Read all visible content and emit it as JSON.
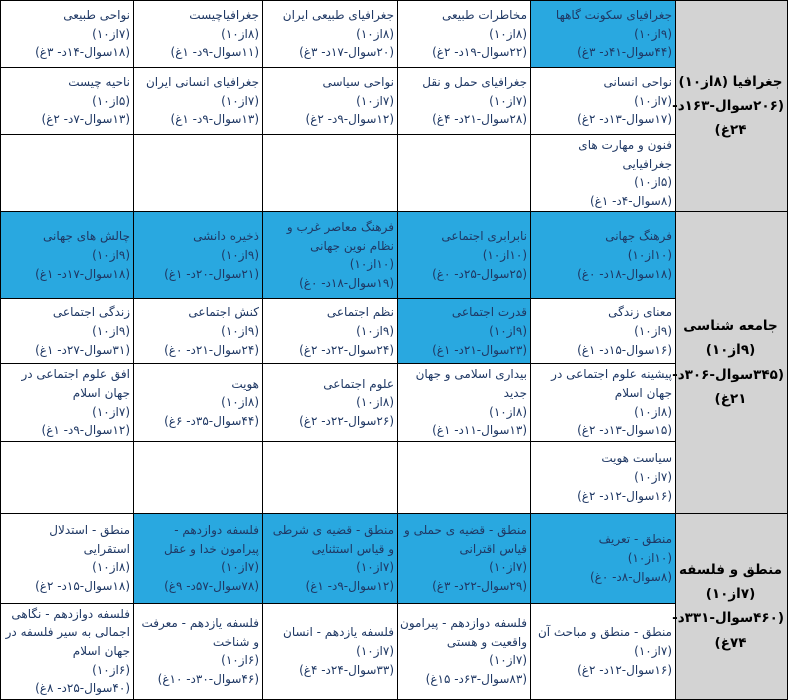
{
  "colors": {
    "highlight_blue": "#29A8E0",
    "group_header_gray": "#D3D3D3",
    "cell_text_navy": "#1F3864",
    "border_black": "#000000",
    "background": "#FFFFFF"
  },
  "table": {
    "direction": "rtl",
    "sections": [
      {
        "header": {
          "title": "جغرافیا (۸از۱۰)",
          "stats": "(۲۰۶سوال-۱۶۳د- ۲۴غ)"
        },
        "rows": [
          {
            "height": 67,
            "cells_rtl": [
              {
                "title": "جغرافیای سکونت گاهها",
                "score": "(۹از۱۰)",
                "stats": "(۴۴سوال-۴۱د- ۳غ)",
                "highlight": true
              },
              {
                "title": "مخاطرات طبیعی",
                "score": "(۸از۱۰)",
                "stats": "(۲۲سوال-۱۹د- ۲غ)",
                "highlight": false
              },
              {
                "title": "جغرافیای طبیعی ایران",
                "score": "(۸از۱۰)",
                "stats": "(۲۰سوال-۱۷د- ۳غ)",
                "highlight": false
              },
              {
                "title": "جغرافیاچیست",
                "score": "(۸از۱۰)",
                "stats": "(۱۱سوال-۹د- ۱غ)",
                "highlight": false
              },
              {
                "title": "نواحی طبیعی",
                "score": "(۷از۱۰)",
                "stats": "(۱۸سوال-۱۴د- ۳غ)",
                "highlight": false
              }
            ]
          },
          {
            "height": 67,
            "cells_rtl": [
              {
                "title": "نواحی انسانی",
                "score": "(۷از۱۰)",
                "stats": "(۱۷سوال-۱۳د- ۲غ)",
                "highlight": false
              },
              {
                "title": "جغرافیای حمل و نقل",
                "score": "(۷از۱۰)",
                "stats": "(۲۸سوال-۲۱د- ۴غ)",
                "highlight": false
              },
              {
                "title": "نواحی سیاسی",
                "score": "(۷از۱۰)",
                "stats": "(۱۲سوال-۹د- ۲غ)",
                "highlight": false
              },
              {
                "title": "جغرافیای انسانی ایران",
                "score": "(۷از۱۰)",
                "stats": "(۱۳سوال-۹د- ۱غ)",
                "highlight": false
              },
              {
                "title": "ناحیه چیست",
                "score": "(۵از۱۰)",
                "stats": "(۱۳سوال-۷د- ۲غ)",
                "highlight": false
              }
            ]
          },
          {
            "height": 64,
            "cells_rtl": [
              {
                "title": "فنون و مهارت های جغرافیایی",
                "score": "(۵از۱۰)",
                "stats": "(۸سوال-۴د- ۱غ)",
                "highlight": false
              },
              null,
              null,
              null,
              null
            ]
          }
        ]
      },
      {
        "header": {
          "title": "جامعه شناسی (۹از۱۰)",
          "stats": "(۳۴۵سوال-۳۰۶د- ۲۱غ)"
        },
        "rows": [
          {
            "height": 87,
            "cells_rtl": [
              {
                "title": "فرهنگ جهانی",
                "score": "(۱۰از۱۰)",
                "stats": "(۱۸سوال-۱۸د- ۰غ)",
                "highlight": true
              },
              {
                "title": "نابرابری اجتماعی",
                "score": "(۱۰از۱۰)",
                "stats": "(۲۵سوال-۲۵د- ۰غ)",
                "highlight": true
              },
              {
                "title": "فرهنگ معاصر غرب و نظام نوین جهانی",
                "score": "(۱۰از۱۰)",
                "stats": "(۱۹سوال-۱۸د- ۰غ)",
                "highlight": true
              },
              {
                "title": "ذخیره دانشی",
                "score": "(۹از۱۰)",
                "stats": "(۲۱سوال-۲۰د- ۱غ)",
                "highlight": true
              },
              {
                "title": "چالش های جهانی",
                "score": "(۹از۱۰)",
                "stats": "(۱۸سوال-۱۷د- ۱غ)",
                "highlight": true
              }
            ]
          },
          {
            "height": 65,
            "cells_rtl": [
              {
                "title": "معنای زندگی",
                "score": "(۹از۱۰)",
                "stats": "(۱۶سوال-۱۵د- ۱غ)",
                "highlight": false
              },
              {
                "title": "قدرت اجتماعی",
                "score": "(۹از۱۰)",
                "stats": "(۲۳سوال-۲۱د- ۱غ)",
                "highlight": true
              },
              {
                "title": "نظم اجتماعی",
                "score": "(۹از۱۰)",
                "stats": "(۲۴سوال-۲۲د- ۲غ)",
                "highlight": false
              },
              {
                "title": "کنش اجتماعی",
                "score": "(۹از۱۰)",
                "stats": "(۲۴سوال-۲۱د- ۰غ)",
                "highlight": false
              },
              {
                "title": "زندگی اجتماعی",
                "score": "(۹از۱۰)",
                "stats": "(۳۱سوال-۲۷د- ۱غ)",
                "highlight": false
              }
            ]
          },
          {
            "height": 73,
            "cells_rtl": [
              {
                "title": "پیشینه علوم اجتماعی در جهان اسلام",
                "score": "(۸از۱۰)",
                "stats": "(۱۵سوال-۱۳د- ۲غ)",
                "highlight": false
              },
              {
                "title": "بیداری اسلامی و جهان جدید",
                "score": "(۸از۱۰)",
                "stats": "(۱۳سوال-۱۱د- ۱غ)",
                "highlight": false
              },
              {
                "title": "علوم اجتماعی",
                "score": "(۸از۱۰)",
                "stats": "(۲۶سوال-۲۲د- ۲غ)",
                "highlight": false
              },
              {
                "title": "هویت",
                "score": "(۸از۱۰)",
                "stats": "(۴۴سوال-۳۵د- ۶غ)",
                "highlight": false
              },
              {
                "title": "افق علوم اجتماعی در جهان اسلام",
                "score": "(۷از۱۰)",
                "stats": "(۱۲سوال-۹د- ۱غ)",
                "highlight": false
              }
            ]
          },
          {
            "height": 72,
            "cells_rtl": [
              {
                "title": "سیاست هویت",
                "score": "(۷از۱۰)",
                "stats": "(۱۶سوال-۱۲د- ۲غ)",
                "highlight": false
              },
              null,
              null,
              null,
              null
            ]
          }
        ]
      },
      {
        "header": {
          "title": "منطق و فلسفه (۷از۱۰)",
          "stats": "(۴۶۰سوال-۳۳۱د- ۷۴غ)"
        },
        "rows": [
          {
            "height": 90,
            "cells_rtl": [
              {
                "title": "منطق - تعریف",
                "score": "(۱۰از۱۰)",
                "stats": "(۸سوال-۸د- ۰غ)",
                "highlight": true
              },
              {
                "title": "منطق - قضیه ی حملی و قیاس اقترانی",
                "score": "(۷از۱۰)",
                "stats": "(۲۹سوال-۲۲د- ۳غ)",
                "highlight": true
              },
              {
                "title": "منطق - قضیه ی شرطی و قیاس استثنایی",
                "score": "(۷از۱۰)",
                "stats": "(۱۲سوال-۹د- ۱غ)",
                "highlight": true
              },
              {
                "title": "فلسفه دوازدهم - پیرامون خدا و عقل",
                "score": "(۷از۱۰)",
                "stats": "(۷۸سوال-۵۷د- ۹غ)",
                "highlight": true
              },
              {
                "title": "منطق - استدلال استقرایی",
                "score": "(۸از۱۰)",
                "stats": "(۱۸سوال-۱۵د- ۲غ)",
                "highlight": false
              }
            ]
          },
          {
            "height": 86,
            "cells_rtl": [
              {
                "title": "منطق - منطق و مباحث آن",
                "score": "(۷از۱۰)",
                "stats": "(۱۶سوال-۱۲د- ۲غ)",
                "highlight": false
              },
              {
                "title": "فلسفه دوازدهم - پیرامون واقعیت و هستی",
                "score": "(۷از۱۰)",
                "stats": "(۸۳سوال-۶۳د- ۱۵غ)",
                "highlight": false
              },
              {
                "title": "فلسفه یازدهم - انسان",
                "score": "(۷از۱۰)",
                "stats": "(۳۳سوال-۲۴د- ۴غ)",
                "highlight": false
              },
              {
                "title": "فلسفه یازدهم - معرفت و شناخت",
                "score": "(۶از۱۰)",
                "stats": "(۴۶سوال-۳۰د- ۱۰غ)",
                "highlight": false
              },
              {
                "title": "فلسفه دوازدهم - نگاهی اجمالی به سیر فلسفه در جهان اسلام",
                "score": "(۶از۱۰)",
                "stats": "(۴۰سوال-۲۵د- ۸غ)",
                "highlight": false
              }
            ]
          }
        ]
      }
    ]
  }
}
